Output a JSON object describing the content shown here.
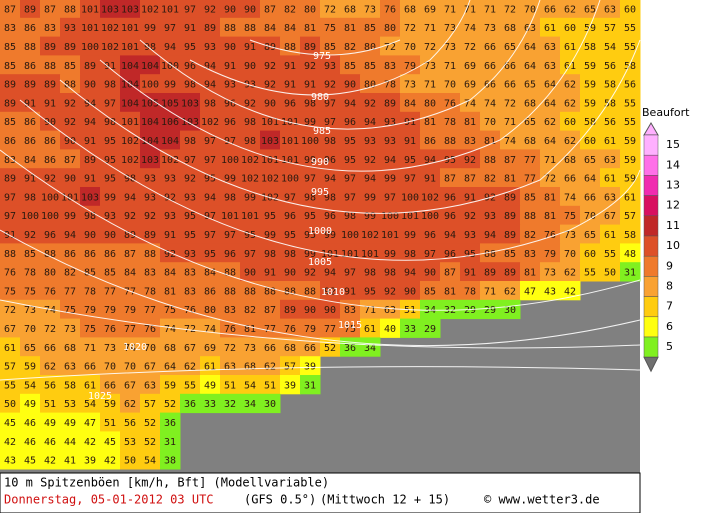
{
  "footer": {
    "title": "10 m Spitzenböen [km/h, Bft] (Modellvariable)",
    "date": "Donnerstag, 05-01-2012  03 UTC",
    "model": "(GFS 0.5°)",
    "run": "(Mittwoch 12 + 15)",
    "credit": "© www.wetter3.de"
  },
  "legend": {
    "title": "Beaufort",
    "items": [
      {
        "label": "15",
        "color": "#ffb0ff"
      },
      {
        "label": "14",
        "color": "#ff70e8"
      },
      {
        "label": "13",
        "color": "#f02cb0"
      },
      {
        "label": "12",
        "color": "#d81060"
      },
      {
        "label": "11",
        "color": "#c02828"
      },
      {
        "label": "10",
        "color": "#dd5028"
      },
      {
        "label": "9",
        "color": "#ef7a2c"
      },
      {
        "label": "8",
        "color": "#f9a232"
      },
      {
        "label": "7",
        "color": "#ffcc10"
      },
      {
        "label": "6",
        "color": "#ffff10"
      },
      {
        "label": "5",
        "color": "#80f020"
      }
    ]
  },
  "isobar_labels": [
    "975",
    "980",
    "985",
    "990",
    "995",
    "1000",
    "1005",
    "1010",
    "1015",
    "1020",
    "1025"
  ],
  "grid": [
    [
      87,
      89,
      87,
      88,
      101,
      103,
      103,
      102,
      101,
      97,
      92,
      90,
      90,
      87,
      82,
      80,
      72,
      68,
      73,
      76,
      68,
      69,
      71,
      71,
      71,
      72,
      70,
      66,
      62,
      65,
      63,
      60
    ],
    [
      83,
      86,
      83,
      93,
      101,
      102,
      101,
      99,
      97,
      91,
      89,
      88,
      88,
      84,
      84,
      81,
      75,
      81,
      85,
      80,
      72,
      71,
      73,
      74,
      73,
      68,
      63,
      61,
      60,
      59,
      57,
      55
    ],
    [
      85,
      88,
      89,
      89,
      100,
      102,
      101,
      98,
      94,
      95,
      93,
      90,
      91,
      89,
      88,
      89,
      85,
      82,
      80,
      72,
      70,
      72,
      73,
      72,
      66,
      65,
      64,
      63,
      61,
      58,
      54,
      55
    ],
    [
      85,
      86,
      88,
      85,
      89,
      91,
      104,
      104,
      100,
      96,
      94,
      91,
      90,
      92,
      91,
      92,
      93,
      85,
      85,
      83,
      79,
      73,
      71,
      69,
      66,
      66,
      64,
      63,
      61,
      59,
      56,
      58
    ],
    [
      89,
      89,
      89,
      88,
      90,
      98,
      104,
      100,
      99,
      98,
      94,
      93,
      93,
      92,
      91,
      91,
      92,
      90,
      80,
      78,
      73,
      71,
      70,
      69,
      66,
      66,
      65,
      64,
      62,
      59,
      58,
      56
    ],
    [
      89,
      91,
      91,
      92,
      94,
      97,
      104,
      105,
      105,
      103,
      98,
      96,
      92,
      90,
      96,
      98,
      97,
      94,
      92,
      89,
      84,
      80,
      76,
      74,
      74,
      72,
      68,
      64,
      62,
      59,
      58,
      55
    ],
    [
      85,
      86,
      90,
      92,
      94,
      98,
      101,
      104,
      106,
      103,
      102,
      96,
      98,
      101,
      101,
      99,
      97,
      96,
      94,
      93,
      91,
      81,
      78,
      81,
      70,
      71,
      65,
      62,
      60,
      58,
      56,
      55
    ],
    [
      86,
      86,
      86,
      90,
      91,
      95,
      102,
      104,
      104,
      98,
      97,
      97,
      98,
      103,
      101,
      100,
      98,
      95,
      93,
      93,
      91,
      86,
      88,
      83,
      81,
      74,
      68,
      64,
      62,
      60,
      61,
      59
    ],
    [
      83,
      84,
      86,
      87,
      89,
      95,
      102,
      103,
      102,
      97,
      97,
      100,
      102,
      101,
      101,
      99,
      96,
      95,
      92,
      94,
      95,
      94,
      95,
      92,
      88,
      87,
      77,
      71,
      68,
      65,
      63,
      59
    ],
    [
      89,
      91,
      92,
      90,
      91,
      95,
      98,
      93,
      93,
      92,
      95,
      99,
      102,
      102,
      100,
      97,
      94,
      97,
      94,
      99,
      97,
      91,
      87,
      87,
      82,
      81,
      77,
      72,
      66,
      64,
      61,
      59
    ],
    [
      97,
      98,
      100,
      101,
      103,
      99,
      94,
      93,
      92,
      93,
      94,
      98,
      99,
      102,
      97,
      98,
      98,
      97,
      99,
      97,
      100,
      102,
      96,
      91,
      92,
      89,
      85,
      81,
      74,
      66,
      63,
      61
    ],
    [
      97,
      100,
      100,
      99,
      98,
      93,
      92,
      92,
      93,
      95,
      97,
      101,
      101,
      95,
      96,
      95,
      96,
      98,
      99,
      100,
      101,
      100,
      96,
      92,
      93,
      89,
      88,
      81,
      75,
      70,
      67,
      57
    ],
    [
      91,
      92,
      96,
      94,
      90,
      90,
      89,
      89,
      91,
      95,
      97,
      97,
      95,
      99,
      95,
      95,
      99,
      100,
      102,
      101,
      99,
      96,
      94,
      93,
      94,
      89,
      82,
      76,
      73,
      65,
      61,
      58
    ],
    [
      88,
      85,
      88,
      86,
      86,
      86,
      87,
      88,
      92,
      93,
      95,
      96,
      97,
      98,
      98,
      99,
      101,
      101,
      101,
      99,
      98,
      97,
      96,
      95,
      88,
      85,
      83,
      79,
      70,
      60,
      55,
      48
    ],
    [
      76,
      78,
      80,
      82,
      85,
      85,
      84,
      83,
      84,
      83,
      84,
      88,
      90,
      91,
      90,
      92,
      94,
      97,
      98,
      98,
      94,
      90,
      87,
      91,
      89,
      89,
      81,
      73,
      62,
      55,
      50,
      31
    ],
    [
      75,
      75,
      76,
      77,
      78,
      77,
      77,
      78,
      81,
      83,
      86,
      88,
      88,
      88,
      88,
      88,
      92,
      91,
      95,
      92,
      90,
      85,
      81,
      78,
      71,
      62,
      47,
      43,
      42
    ],
    [
      72,
      73,
      74,
      75,
      79,
      79,
      79,
      77,
      75,
      76,
      80,
      83,
      82,
      87,
      89,
      90,
      90,
      83,
      71,
      63,
      51,
      34,
      32,
      29,
      29,
      30
    ],
    [
      67,
      70,
      72,
      73,
      75,
      76,
      77,
      76,
      74,
      72,
      74,
      76,
      81,
      77,
      76,
      79,
      77,
      75,
      61,
      40,
      33,
      29
    ],
    [
      61,
      65,
      66,
      68,
      71,
      73,
      74,
      70,
      68,
      67,
      69,
      72,
      73,
      66,
      68,
      66,
      52,
      36,
      34
    ],
    [
      57,
      59,
      62,
      63,
      66,
      70,
      70,
      67,
      64,
      62,
      61,
      63,
      68,
      62,
      57,
      39
    ],
    [
      55,
      54,
      56,
      58,
      61,
      66,
      67,
      63,
      59,
      55,
      49,
      51,
      54,
      51,
      39,
      31
    ],
    [
      50,
      49,
      51,
      53,
      54,
      59,
      62,
      57,
      52,
      36,
      33,
      32,
      34,
      30
    ],
    [
      45,
      46,
      49,
      49,
      47,
      51,
      56,
      52,
      36
    ],
    [
      42,
      46,
      46,
      44,
      42,
      45,
      53,
      52,
      31
    ],
    [
      43,
      45,
      42,
      41,
      39,
      42,
      50,
      54,
      38
    ]
  ]
}
